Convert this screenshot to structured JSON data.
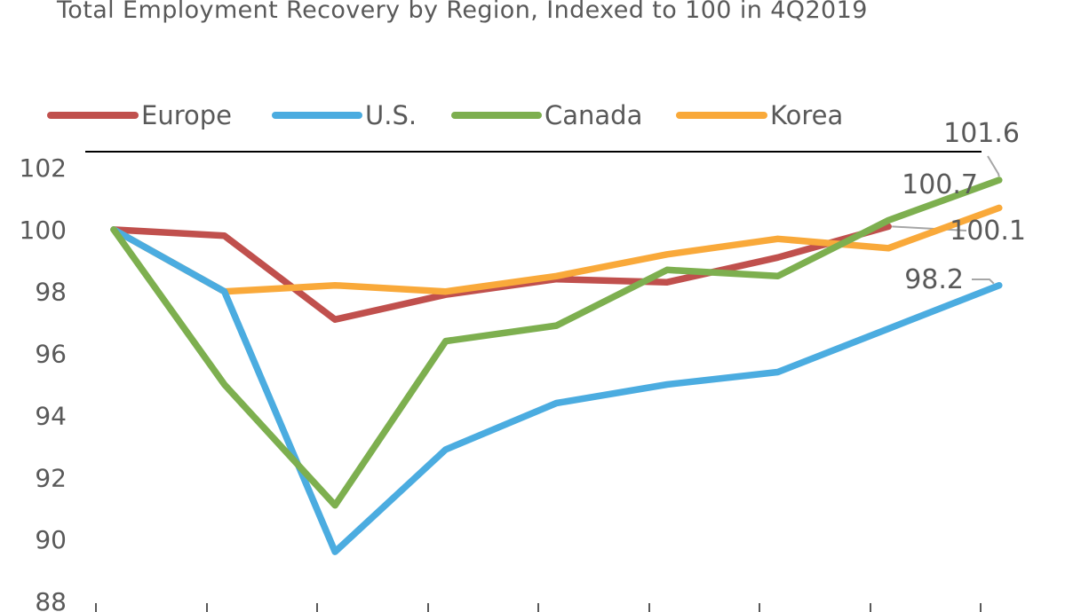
{
  "chart_data": {
    "type": "line",
    "title": "Total Employment Recovery by Region, Indexed to 100 in 4Q2019",
    "xlabel": "",
    "ylabel": "",
    "ylim": [
      88,
      102
    ],
    "yticks": [
      "88",
      "90",
      "92",
      "94",
      "96",
      "98",
      "100",
      "102"
    ],
    "x": [
      0,
      1,
      2,
      3,
      4,
      5,
      6,
      7,
      8
    ],
    "grid": false,
    "legend_position": "top",
    "series": [
      {
        "name": "Europe",
        "color": "#C0504D",
        "values": [
          100.0,
          99.8,
          97.1,
          97.9,
          98.4,
          98.3,
          99.1,
          100.1,
          null
        ],
        "label": "100.1"
      },
      {
        "name": "U.S.",
        "color": "#4BACE0",
        "values": [
          100.0,
          98.0,
          89.6,
          92.9,
          94.4,
          95.0,
          95.4,
          96.8,
          98.2
        ],
        "label": "98.2"
      },
      {
        "name": "Canada",
        "color": "#7DAF4F",
        "values": [
          100.0,
          95.0,
          91.1,
          96.4,
          96.9,
          98.7,
          98.5,
          100.3,
          101.6
        ],
        "label": "101.6"
      },
      {
        "name": "Korea",
        "color": "#F9A93A",
        "values": [
          100.0,
          98.0,
          98.2,
          98.0,
          98.5,
          99.2,
          99.7,
          99.4,
          100.7
        ],
        "label": "100.7"
      }
    ]
  }
}
